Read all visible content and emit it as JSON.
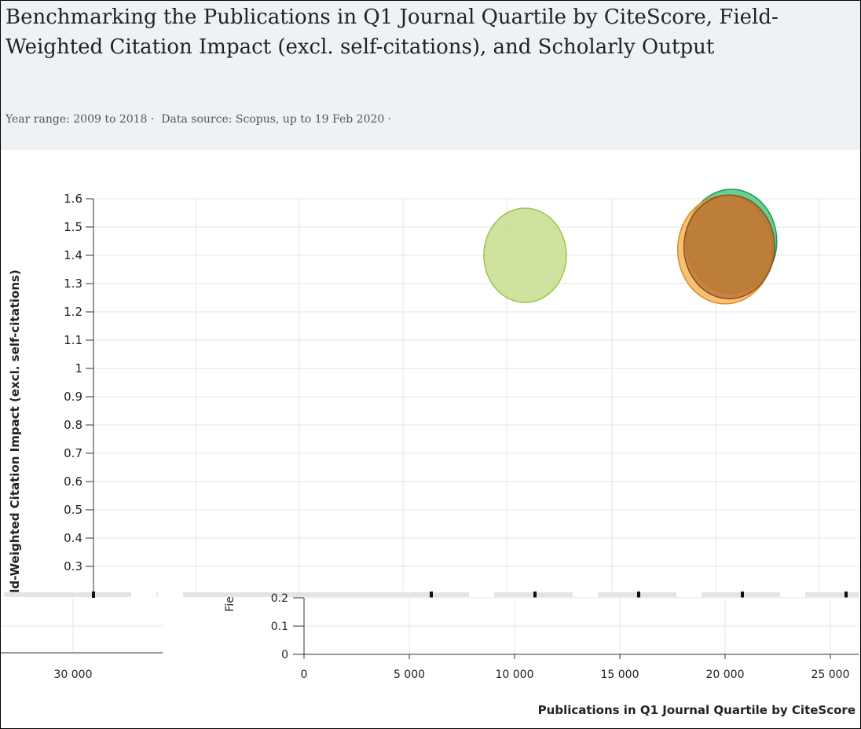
{
  "header": {
    "title": "Benchmarking the Publications in Q1 Journal Quartile by CiteScore, Field-Weighted Citation Impact (excl. self-citations), and Scholarly Output",
    "year_range": "Year range: 2009 to 2018 ·",
    "data_source": "Data source: Scopus, up to 19 Feb 2020 ·"
  },
  "chart_data": {
    "type": "scatter",
    "title": "Benchmarking the Publications in Q1 Journal Quartile by CiteScore, Field-Weighted Citation Impact (excl. self-citations), and Scholarly Output",
    "xlabel": "Publications in Q1 Journal Quartile by CiteScore",
    "ylabel": "Field-Weighted Citation Impact (excl. self-citations)",
    "ylabel_visible": "ld-Weighted Citation Impact (excl. self-citations)",
    "xlim": [
      0,
      26000
    ],
    "ylim": [
      0,
      1.6
    ],
    "x_ticks": [
      "0",
      "5 000",
      "10 000",
      "15 000",
      "20 000",
      "25 000"
    ],
    "x_tick_values": [
      0,
      5000,
      10000,
      15000,
      20000,
      25000
    ],
    "x_ticks_ghost": [
      "30 000"
    ],
    "x_ticks_ghost_values": [
      30000
    ],
    "y_ticks_upper": [
      "1.6",
      "1.5",
      "1.4",
      "1.3",
      "1.2",
      "1.1",
      "1",
      "0.9",
      "0.8",
      "0.7",
      "0.6",
      "0.5",
      "0.4",
      "0.3"
    ],
    "y_ticks_upper_values": [
      1.6,
      1.5,
      1.4,
      1.3,
      1.2,
      1.1,
      1.0,
      0.9,
      0.8,
      0.7,
      0.6,
      0.5,
      0.4,
      0.3
    ],
    "y_ticks_lower": [
      "0.2",
      "0.1",
      "0"
    ],
    "y_ticks_lower_values": [
      0.2,
      0.1,
      0
    ],
    "grid": true,
    "legend": "none",
    "series": [
      {
        "x": 10500,
        "y": 1.4,
        "size": 1.0,
        "color": "#bcd87a",
        "stroke": "#9ec24d"
      },
      {
        "x": 20300,
        "y": 1.45,
        "size": 1.1,
        "color": "#2ebd6a",
        "stroke": "#1e9a52"
      },
      {
        "x": 20000,
        "y": 1.42,
        "size": 1.15,
        "color": "#f5a83c",
        "stroke": "#e08a1c"
      },
      {
        "x": 20200,
        "y": 1.43,
        "size": 1.1,
        "color": "#b56a2e",
        "stroke": "#8f4f1e"
      }
    ]
  }
}
